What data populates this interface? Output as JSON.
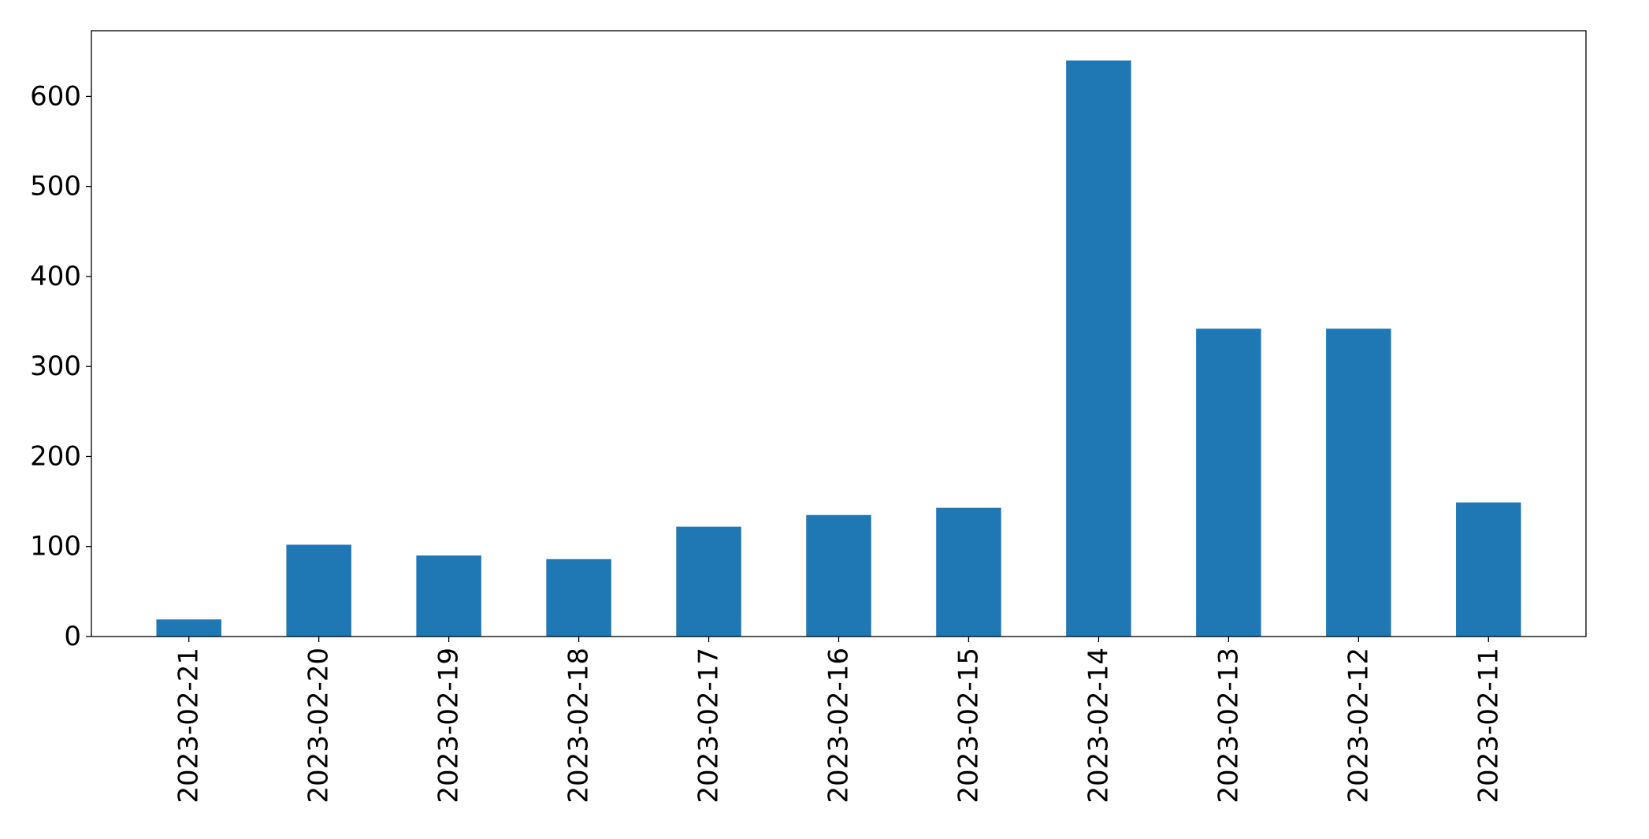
{
  "chart_data": {
    "type": "bar",
    "title": "",
    "xlabel": "",
    "ylabel": "",
    "categories": [
      "2023-02-21",
      "2023-02-20",
      "2023-02-19",
      "2023-02-18",
      "2023-02-17",
      "2023-02-16",
      "2023-02-15",
      "2023-02-14",
      "2023-02-13",
      "2023-02-12",
      "2023-02-11"
    ],
    "values": [
      19,
      102,
      90,
      86,
      122,
      135,
      143,
      640,
      342,
      342,
      149
    ],
    "ylim": [
      0,
      673
    ],
    "yticks": [
      0,
      100,
      200,
      300,
      400,
      500,
      600
    ],
    "ytick_labels": [
      "0",
      "100",
      "200",
      "300",
      "400",
      "500",
      "600"
    ],
    "bar_color": "#1f77b4",
    "grid": false,
    "legend": "none",
    "x_tick_rotation": "vertical"
  }
}
